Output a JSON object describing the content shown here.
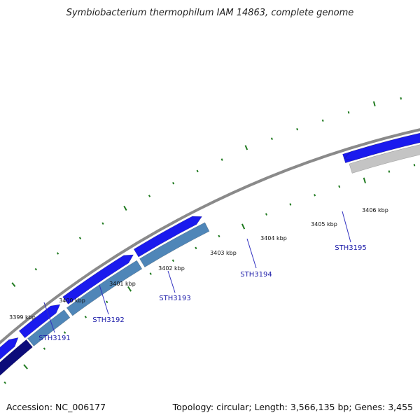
{
  "title": "Symbiobacterium thermophilum IAM 14863, complete genome",
  "footer": {
    "accession": "Accession: NC_006177",
    "topology": "Topology: circular; Length: 3,566,135 bp; Genes: 3,455"
  },
  "colors": {
    "background": "#ffffff",
    "backbone": "#8a8a8a",
    "tick": "#1f7a1f",
    "forward_gene": "#1a1aee",
    "steel_blue": "#4f86b8",
    "navy": "#0c0c7a",
    "grey": "#c4c4c4",
    "label_blue": "#1a1aa8",
    "leader": "#3030c0"
  },
  "scale_labels": [
    "3399 kbp",
    "3400 kbp",
    "3401 kbp",
    "3402 kbp",
    "3403 kbp",
    "3404 kbp",
    "3405 kbp",
    "3406 kbp"
  ],
  "gene_labels": [
    "STH3191",
    "STH3192",
    "STH3193",
    "STH3194",
    "STH3195"
  ]
}
